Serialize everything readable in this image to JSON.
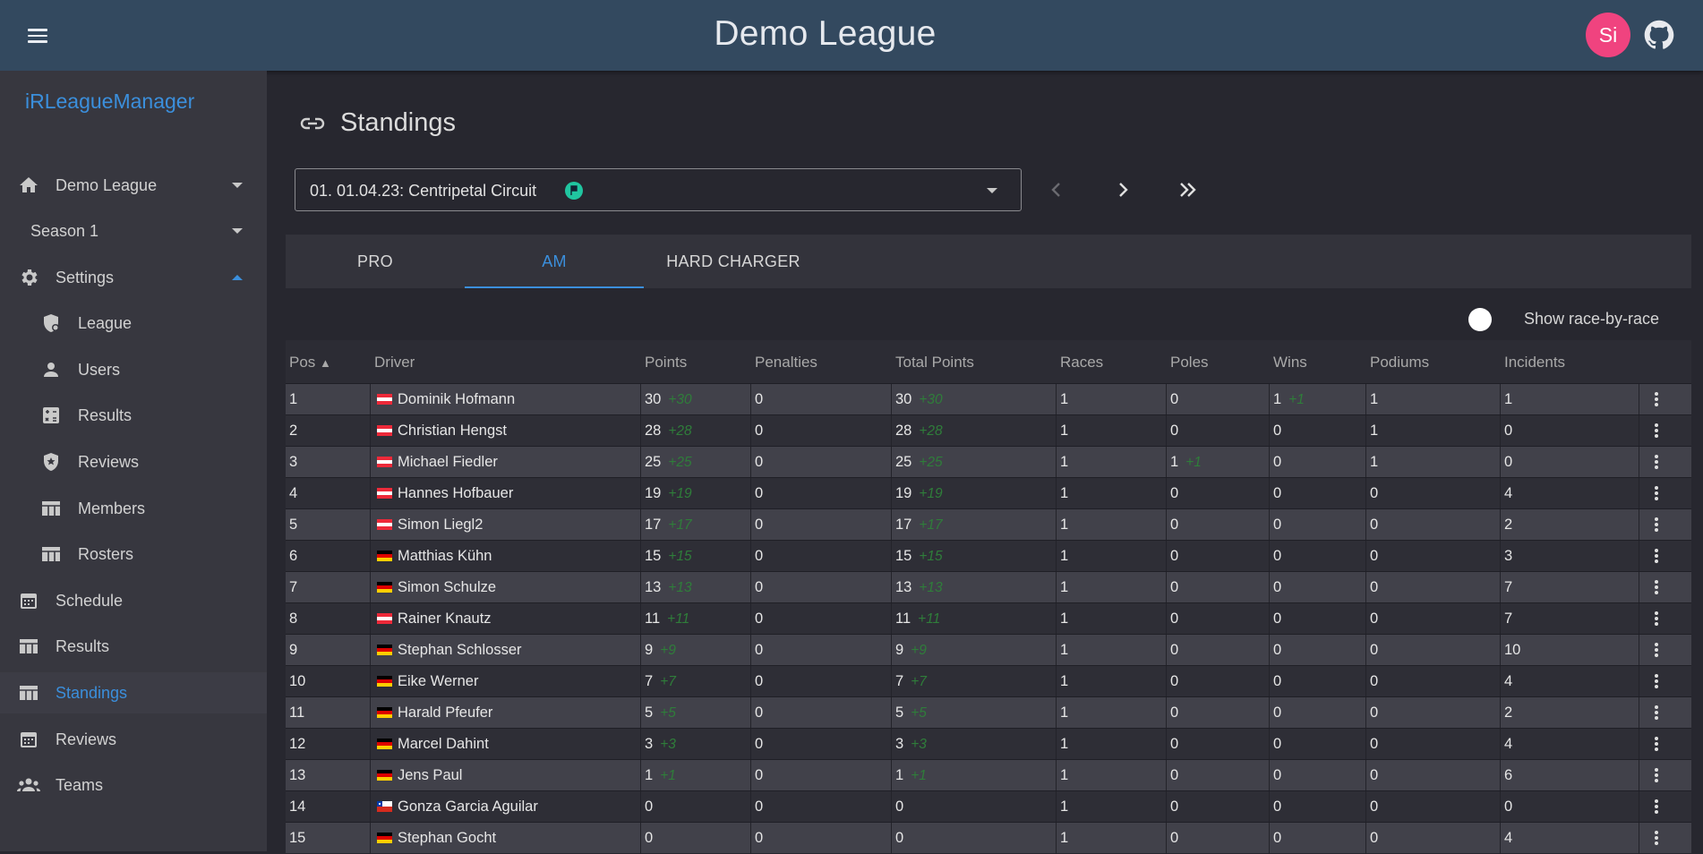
{
  "header": {
    "title": "Demo League",
    "avatar_initials": "Si"
  },
  "sidebar": {
    "brand": "iRLeagueManager",
    "league": "Demo League",
    "season": "Season 1",
    "settings": "Settings",
    "settings_items": [
      "League",
      "Users",
      "Results",
      "Reviews",
      "Members",
      "Rosters"
    ],
    "items": [
      "Schedule",
      "Results",
      "Standings",
      "Reviews",
      "Teams"
    ]
  },
  "page": {
    "title": "Standings",
    "event_select": "01. 01.04.23: Centripetal Circuit",
    "tabs": [
      "PRO",
      "AM",
      "HARD CHARGER"
    ],
    "active_tab": "AM",
    "toggle_label": "Show race-by-race"
  },
  "table": {
    "columns": [
      "Pos",
      "Driver",
      "Points",
      "Penalties",
      "Total Points",
      "Races",
      "Poles",
      "Wins",
      "Podiums",
      "Incidents"
    ],
    "rows": [
      {
        "pos": "1",
        "flag": "at",
        "driver": "Dominik Hofmann",
        "points": "30",
        "points_delta": "+30",
        "penalties": "0",
        "total": "30",
        "total_delta": "+30",
        "races": "1",
        "poles": "0",
        "poles_delta": "",
        "wins": "1",
        "wins_delta": "+1",
        "podiums": "1",
        "incidents": "1"
      },
      {
        "pos": "2",
        "flag": "at",
        "driver": "Christian Hengst",
        "points": "28",
        "points_delta": "+28",
        "penalties": "0",
        "total": "28",
        "total_delta": "+28",
        "races": "1",
        "poles": "0",
        "poles_delta": "",
        "wins": "0",
        "wins_delta": "",
        "podiums": "1",
        "incidents": "0"
      },
      {
        "pos": "3",
        "flag": "at",
        "driver": "Michael Fiedler",
        "points": "25",
        "points_delta": "+25",
        "penalties": "0",
        "total": "25",
        "total_delta": "+25",
        "races": "1",
        "poles": "1",
        "poles_delta": "+1",
        "wins": "0",
        "wins_delta": "",
        "podiums": "1",
        "incidents": "0"
      },
      {
        "pos": "4",
        "flag": "at",
        "driver": "Hannes Hofbauer",
        "points": "19",
        "points_delta": "+19",
        "penalties": "0",
        "total": "19",
        "total_delta": "+19",
        "races": "1",
        "poles": "0",
        "poles_delta": "",
        "wins": "0",
        "wins_delta": "",
        "podiums": "0",
        "incidents": "4"
      },
      {
        "pos": "5",
        "flag": "at",
        "driver": "Simon Liegl2",
        "points": "17",
        "points_delta": "+17",
        "penalties": "0",
        "total": "17",
        "total_delta": "+17",
        "races": "1",
        "poles": "0",
        "poles_delta": "",
        "wins": "0",
        "wins_delta": "",
        "podiums": "0",
        "incidents": "2"
      },
      {
        "pos": "6",
        "flag": "de",
        "driver": "Matthias Kühn",
        "points": "15",
        "points_delta": "+15",
        "penalties": "0",
        "total": "15",
        "total_delta": "+15",
        "races": "1",
        "poles": "0",
        "poles_delta": "",
        "wins": "0",
        "wins_delta": "",
        "podiums": "0",
        "incidents": "3"
      },
      {
        "pos": "7",
        "flag": "de",
        "driver": "Simon Schulze",
        "points": "13",
        "points_delta": "+13",
        "penalties": "0",
        "total": "13",
        "total_delta": "+13",
        "races": "1",
        "poles": "0",
        "poles_delta": "",
        "wins": "0",
        "wins_delta": "",
        "podiums": "0",
        "incidents": "7"
      },
      {
        "pos": "8",
        "flag": "at",
        "driver": "Rainer Knautz",
        "points": "11",
        "points_delta": "+11",
        "penalties": "0",
        "total": "11",
        "total_delta": "+11",
        "races": "1",
        "poles": "0",
        "poles_delta": "",
        "wins": "0",
        "wins_delta": "",
        "podiums": "0",
        "incidents": "7"
      },
      {
        "pos": "9",
        "flag": "de",
        "driver": "Stephan Schlosser",
        "points": "9",
        "points_delta": "+9",
        "penalties": "0",
        "total": "9",
        "total_delta": "+9",
        "races": "1",
        "poles": "0",
        "poles_delta": "",
        "wins": "0",
        "wins_delta": "",
        "podiums": "0",
        "incidents": "10"
      },
      {
        "pos": "10",
        "flag": "de",
        "driver": "Eike Werner",
        "points": "7",
        "points_delta": "+7",
        "penalties": "0",
        "total": "7",
        "total_delta": "+7",
        "races": "1",
        "poles": "0",
        "poles_delta": "",
        "wins": "0",
        "wins_delta": "",
        "podiums": "0",
        "incidents": "4"
      },
      {
        "pos": "11",
        "flag": "de",
        "driver": "Harald Pfeufer",
        "points": "5",
        "points_delta": "+5",
        "penalties": "0",
        "total": "5",
        "total_delta": "+5",
        "races": "1",
        "poles": "0",
        "poles_delta": "",
        "wins": "0",
        "wins_delta": "",
        "podiums": "0",
        "incidents": "2"
      },
      {
        "pos": "12",
        "flag": "de",
        "driver": "Marcel Dahint",
        "points": "3",
        "points_delta": "+3",
        "penalties": "0",
        "total": "3",
        "total_delta": "+3",
        "races": "1",
        "poles": "0",
        "poles_delta": "",
        "wins": "0",
        "wins_delta": "",
        "podiums": "0",
        "incidents": "4"
      },
      {
        "pos": "13",
        "flag": "de",
        "driver": "Jens Paul",
        "points": "1",
        "points_delta": "+1",
        "penalties": "0",
        "total": "1",
        "total_delta": "+1",
        "races": "1",
        "poles": "0",
        "poles_delta": "",
        "wins": "0",
        "wins_delta": "",
        "podiums": "0",
        "incidents": "6"
      },
      {
        "pos": "14",
        "flag": "cl",
        "driver": "Gonza Garcia Aguilar",
        "points": "0",
        "points_delta": "",
        "penalties": "0",
        "total": "0",
        "total_delta": "",
        "races": "1",
        "poles": "0",
        "poles_delta": "",
        "wins": "0",
        "wins_delta": "",
        "podiums": "0",
        "incidents": "0"
      },
      {
        "pos": "15",
        "flag": "de",
        "driver": "Stephan Gocht",
        "points": "0",
        "points_delta": "",
        "penalties": "0",
        "total": "0",
        "total_delta": "",
        "races": "1",
        "poles": "0",
        "poles_delta": "",
        "wins": "0",
        "wins_delta": "",
        "podiums": "0",
        "incidents": "4"
      }
    ]
  }
}
